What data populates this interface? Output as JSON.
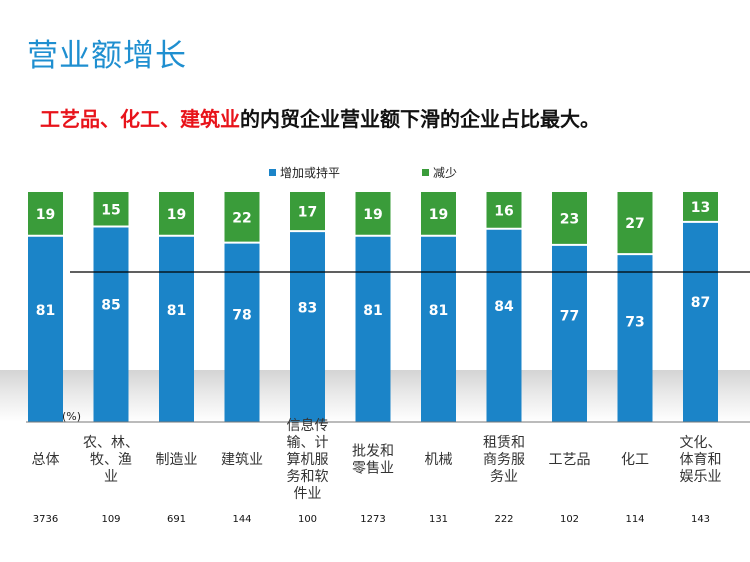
{
  "page": {
    "title": "营业额增长",
    "subtitle_highlight": "工艺品、化工、建筑业",
    "subtitle_rest": "的内贸企业营业额下滑的企业占比最大。"
  },
  "colors": {
    "increase": "#1b84c8",
    "decrease": "#3a9c3a",
    "title": "#1f8fd0",
    "highlight": "#e8131a"
  },
  "chart_data": {
    "type": "bar",
    "stacked": true,
    "unit_label": "(%)",
    "categories": [
      "总体",
      "农、林、牧、渔业",
      "制造业",
      "建筑业",
      "信息传输、计算机服务和软件业",
      "批发和零售业",
      "机械",
      "租赁和商务服务业",
      "工艺品",
      "化工",
      "文化、体育和娱乐业"
    ],
    "category_lines": [
      [
        "总体"
      ],
      [
        "农、林、",
        "牧、渔",
        "业"
      ],
      [
        "制造业"
      ],
      [
        "建筑业"
      ],
      [
        "信息传",
        "输、计",
        "算机服",
        "务和软",
        "件业"
      ],
      [
        "批发和",
        "零售业"
      ],
      [
        "机械"
      ],
      [
        "租赁和",
        "商务服",
        "务业"
      ],
      [
        "工艺品"
      ],
      [
        "化工"
      ],
      [
        "文化、",
        "体育和",
        "娱乐业"
      ]
    ],
    "series": [
      {
        "name": "增加或持平",
        "values": [
          81,
          85,
          81,
          78,
          83,
          81,
          81,
          84,
          77,
          73,
          87
        ]
      },
      {
        "name": "减少",
        "values": [
          19,
          15,
          19,
          22,
          17,
          19,
          19,
          16,
          23,
          27,
          13
        ]
      }
    ],
    "sample_sizes": [
      "3736",
      "109",
      "691",
      "144",
      "100",
      "1273",
      "131",
      "222",
      "102",
      "114",
      "143"
    ],
    "ylim": [
      0,
      100
    ],
    "legend_position": "top"
  }
}
